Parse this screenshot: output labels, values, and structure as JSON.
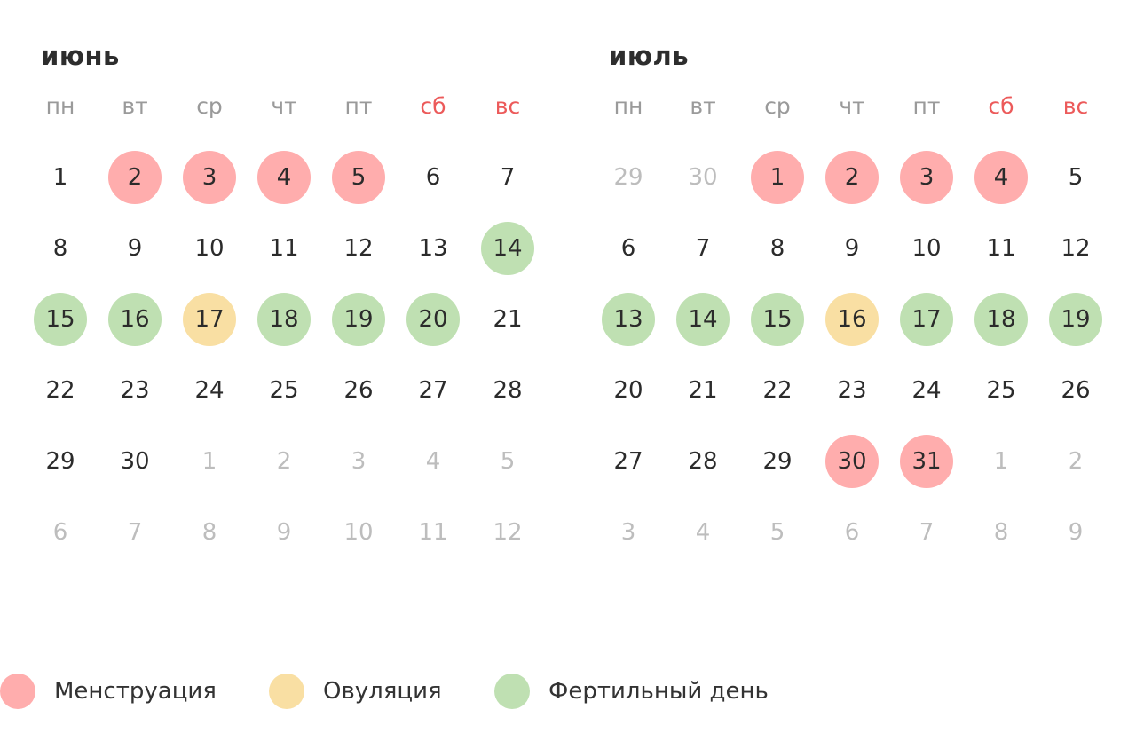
{
  "weekdays": [
    "пн",
    "вт",
    "ср",
    "чт",
    "пт",
    "сб",
    "вс"
  ],
  "colors": {
    "menstruation": "#ffadad",
    "ovulation": "#f9dfa3",
    "fertile": "#bfe0b2",
    "weekend": "#ec5a5a",
    "other_month": "#bdbdbd"
  },
  "months": [
    {
      "name": "июнь",
      "weeks": [
        [
          {
            "d": "1"
          },
          {
            "d": "2",
            "t": "menstruation"
          },
          {
            "d": "3",
            "t": "menstruation"
          },
          {
            "d": "4",
            "t": "menstruation"
          },
          {
            "d": "5",
            "t": "menstruation"
          },
          {
            "d": "6"
          },
          {
            "d": "7"
          }
        ],
        [
          {
            "d": "8"
          },
          {
            "d": "9"
          },
          {
            "d": "10"
          },
          {
            "d": "11"
          },
          {
            "d": "12"
          },
          {
            "d": "13"
          },
          {
            "d": "14",
            "t": "fertile"
          }
        ],
        [
          {
            "d": "15",
            "t": "fertile"
          },
          {
            "d": "16",
            "t": "fertile"
          },
          {
            "d": "17",
            "t": "ovulation"
          },
          {
            "d": "18",
            "t": "fertile"
          },
          {
            "d": "19",
            "t": "fertile"
          },
          {
            "d": "20",
            "t": "fertile"
          },
          {
            "d": "21"
          }
        ],
        [
          {
            "d": "22"
          },
          {
            "d": "23"
          },
          {
            "d": "24"
          },
          {
            "d": "25"
          },
          {
            "d": "26"
          },
          {
            "d": "27"
          },
          {
            "d": "28"
          }
        ],
        [
          {
            "d": "29"
          },
          {
            "d": "30"
          },
          {
            "d": "1",
            "o": true
          },
          {
            "d": "2",
            "o": true
          },
          {
            "d": "3",
            "o": true
          },
          {
            "d": "4",
            "o": true
          },
          {
            "d": "5",
            "o": true
          }
        ],
        [
          {
            "d": "6",
            "o": true
          },
          {
            "d": "7",
            "o": true
          },
          {
            "d": "8",
            "o": true
          },
          {
            "d": "9",
            "o": true
          },
          {
            "d": "10",
            "o": true
          },
          {
            "d": "11",
            "o": true
          },
          {
            "d": "12",
            "o": true
          }
        ]
      ]
    },
    {
      "name": "июль",
      "weeks": [
        [
          {
            "d": "29",
            "o": true
          },
          {
            "d": "30",
            "o": true
          },
          {
            "d": "1",
            "t": "menstruation"
          },
          {
            "d": "2",
            "t": "menstruation"
          },
          {
            "d": "3",
            "t": "menstruation"
          },
          {
            "d": "4",
            "t": "menstruation"
          },
          {
            "d": "5"
          }
        ],
        [
          {
            "d": "6"
          },
          {
            "d": "7"
          },
          {
            "d": "8"
          },
          {
            "d": "9"
          },
          {
            "d": "10"
          },
          {
            "d": "11"
          },
          {
            "d": "12"
          }
        ],
        [
          {
            "d": "13",
            "t": "fertile"
          },
          {
            "d": "14",
            "t": "fertile"
          },
          {
            "d": "15",
            "t": "fertile"
          },
          {
            "d": "16",
            "t": "ovulation"
          },
          {
            "d": "17",
            "t": "fertile"
          },
          {
            "d": "18",
            "t": "fertile"
          },
          {
            "d": "19",
            "t": "fertile"
          }
        ],
        [
          {
            "d": "20"
          },
          {
            "d": "21"
          },
          {
            "d": "22"
          },
          {
            "d": "23"
          },
          {
            "d": "24"
          },
          {
            "d": "25"
          },
          {
            "d": "26"
          }
        ],
        [
          {
            "d": "27"
          },
          {
            "d": "28"
          },
          {
            "d": "29"
          },
          {
            "d": "30",
            "t": "menstruation"
          },
          {
            "d": "31",
            "t": "menstruation"
          },
          {
            "d": "1",
            "o": true
          },
          {
            "d": "2",
            "o": true
          }
        ],
        [
          {
            "d": "3",
            "o": true
          },
          {
            "d": "4",
            "o": true
          },
          {
            "d": "5",
            "o": true
          },
          {
            "d": "6",
            "o": true
          },
          {
            "d": "7",
            "o": true
          },
          {
            "d": "8",
            "o": true
          },
          {
            "d": "9",
            "o": true
          }
        ]
      ]
    }
  ],
  "legend": {
    "menstruation": "Менструация",
    "ovulation": "Овуляция",
    "fertile": "Фертильный день"
  }
}
